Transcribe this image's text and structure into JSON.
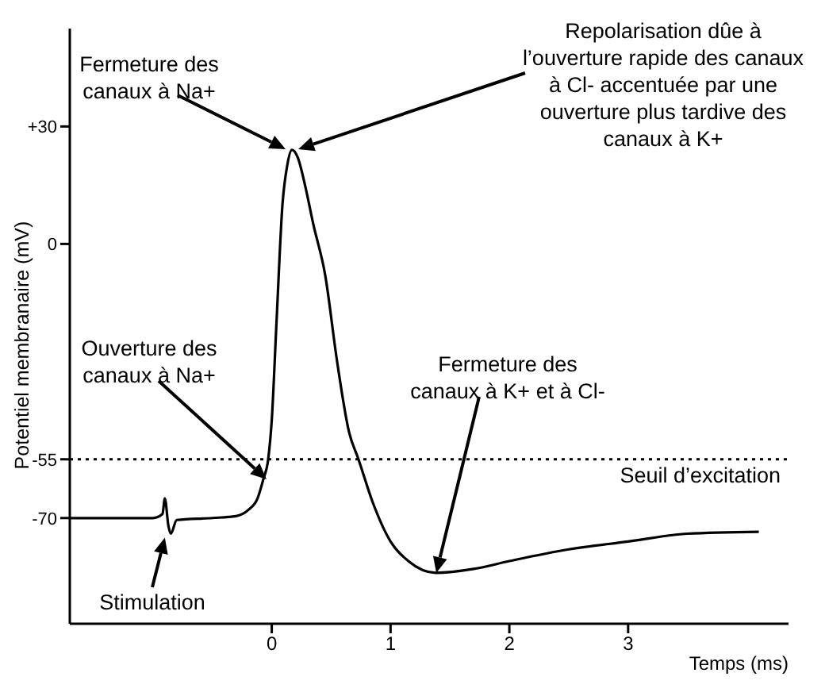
{
  "chart_data": {
    "type": "line",
    "xlabel": "Temps (ms)",
    "ylabel": "Potentiel membranaire (mV)",
    "x": [
      -1.7,
      -1.0,
      -0.92,
      -0.9,
      -0.87,
      -0.85,
      -0.8,
      -0.5,
      -0.3,
      -0.2,
      -0.12,
      -0.07,
      -0.03,
      0.0,
      0.04,
      0.09,
      0.13,
      0.17,
      0.22,
      0.28,
      0.35,
      0.45,
      0.55,
      0.65,
      0.73,
      0.85,
      1.0,
      1.15,
      1.38,
      1.7,
      2.0,
      2.5,
      3.0,
      3.5,
      4.1
    ],
    "series": [
      {
        "color": "#000000",
        "values": [
          -70,
          -70,
          -69,
          -65,
          -72,
          -74,
          -70.5,
          -70,
          -69.5,
          -68,
          -65,
          -60,
          -55,
          -45,
          -20,
          10,
          20,
          24,
          22,
          15,
          5,
          -8,
          -30,
          -48,
          -55,
          -66,
          -76,
          -81,
          -84,
          -83,
          -81,
          -78,
          -76,
          -74,
          -73.5
        ]
      }
    ],
    "xlim": [
      -1.7,
      4.35
    ],
    "xticks": [
      0,
      1,
      2,
      3
    ],
    "ylim": [
      -97,
      55
    ],
    "yticks": [
      {
        "value": 30,
        "label": "+30"
      },
      0,
      -55,
      -70
    ],
    "grid": false,
    "legend": false,
    "marker": "none",
    "line_style": "solid",
    "ref_lines": [
      {
        "axis": "y",
        "value": -55,
        "label": "Seuil d’excitation",
        "color": "#000000",
        "line_style": "dotted"
      }
    ],
    "annotations": [
      "Fermeture des\ncanaux à Na+",
      "Repolarisation dûe à\nl’ouverture rapide des canaux\nà Cl- accentuée par une\nouverture plus tardive des\ncanaux à K+",
      "Ouverture des\ncanaux à Na+",
      "Fermeture des\ncanaux à K+ et à Cl-",
      {
        "text": "Stimulation",
        "x": -0.9,
        "y": -75
      }
    ]
  }
}
